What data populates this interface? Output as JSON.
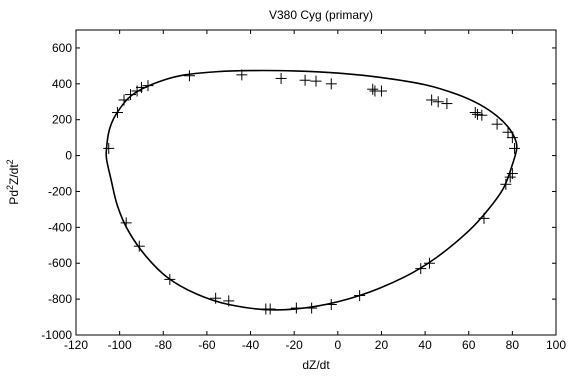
{
  "chart_data": {
    "type": "scatter",
    "title": "V380 Cyg (primary)",
    "xlabel": "dZ/dt",
    "ylabel_parts": {
      "base": "Pd",
      "sup1": "2",
      "mid": "Z/dt",
      "sup2": "2"
    },
    "xlim": [
      -120,
      100
    ],
    "ylim": [
      -1000,
      700
    ],
    "xticks": [
      -120,
      -100,
      -80,
      -60,
      -40,
      -20,
      0,
      20,
      40,
      60,
      80,
      100
    ],
    "yticks": [
      -1000,
      -800,
      -600,
      -400,
      -200,
      0,
      200,
      400,
      600
    ],
    "grid": false,
    "series": [
      {
        "marker": "plus",
        "points": [
          [
            -105,
            40
          ],
          [
            -101,
            240
          ],
          [
            -98,
            310
          ],
          [
            -95,
            340
          ],
          [
            -92,
            360
          ],
          [
            -90,
            380
          ],
          [
            -87,
            390
          ],
          [
            -68,
            445
          ],
          [
            -44,
            450
          ],
          [
            -26,
            430
          ],
          [
            -15,
            420
          ],
          [
            -10,
            415
          ],
          [
            -3,
            400
          ],
          [
            16,
            370
          ],
          [
            17,
            360
          ],
          [
            20,
            360
          ],
          [
            43,
            310
          ],
          [
            46,
            300
          ],
          [
            50,
            290
          ],
          [
            63,
            240
          ],
          [
            64,
            230
          ],
          [
            66,
            225
          ],
          [
            73,
            175
          ],
          [
            78,
            130
          ],
          [
            80,
            100
          ],
          [
            81,
            40
          ],
          [
            80,
            -100
          ],
          [
            79,
            -120
          ],
          [
            77,
            -160
          ],
          [
            67,
            -350
          ],
          [
            42,
            -600
          ],
          [
            38,
            -630
          ],
          [
            10,
            -780
          ],
          [
            -3,
            -830
          ],
          [
            -12,
            -850
          ],
          [
            -19,
            -850
          ],
          [
            -31,
            -855
          ],
          [
            -33,
            -855
          ],
          [
            -50,
            -810
          ],
          [
            -56,
            -795
          ],
          [
            -77,
            -690
          ],
          [
            -91,
            -505
          ],
          [
            -97,
            -375
          ]
        ]
      },
      {
        "marker": "line",
        "closed": true,
        "points": [
          [
            -106,
            40
          ],
          [
            -105,
            130
          ],
          [
            -103,
            200
          ],
          [
            -100,
            260
          ],
          [
            -96,
            320
          ],
          [
            -90,
            370
          ],
          [
            -80,
            420
          ],
          [
            -70,
            450
          ],
          [
            -55,
            468
          ],
          [
            -40,
            474
          ],
          [
            -20,
            472
          ],
          [
            0,
            460
          ],
          [
            20,
            435
          ],
          [
            40,
            395
          ],
          [
            55,
            340
          ],
          [
            65,
            285
          ],
          [
            73,
            220
          ],
          [
            78,
            160
          ],
          [
            81,
            100
          ],
          [
            82,
            40
          ],
          [
            80,
            -50
          ],
          [
            76,
            -180
          ],
          [
            69,
            -300
          ],
          [
            60,
            -420
          ],
          [
            45,
            -570
          ],
          [
            30,
            -680
          ],
          [
            10,
            -780
          ],
          [
            -10,
            -840
          ],
          [
            -30,
            -860
          ],
          [
            -50,
            -830
          ],
          [
            -65,
            -770
          ],
          [
            -78,
            -680
          ],
          [
            -88,
            -560
          ],
          [
            -96,
            -420
          ],
          [
            -101,
            -280
          ],
          [
            -104,
            -130
          ],
          [
            -106,
            -20
          ]
        ]
      }
    ]
  }
}
